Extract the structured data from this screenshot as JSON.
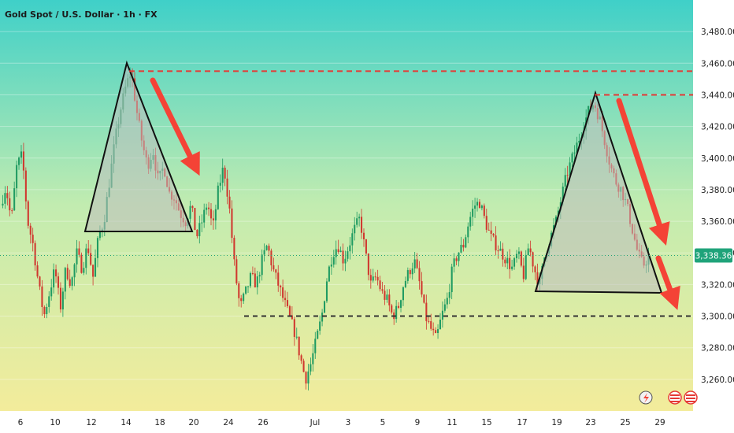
{
  "title": "Gold Spot / U.S. Dollar · 1h · FX",
  "colors": {
    "bg_top": "#3fd0c8",
    "bg_mid": "#c2ecb0",
    "bg_bottom": "#f3ec9b",
    "candle_up": "#1f9b62",
    "candle_down": "#d0382f",
    "resistance": "#e53935",
    "support": "#333333",
    "arrow": "#f44336",
    "price_tag": "#1fa37a"
  },
  "price_tag": "3,338.36",
  "chart_data": {
    "type": "candlestick",
    "y_ticks": [
      3260,
      3280,
      3300,
      3320,
      3340,
      3360,
      3380,
      3400,
      3420,
      3440,
      3460,
      3480
    ],
    "y_tick_labels": [
      "3,260.00",
      "3,280.00",
      "3,300.00",
      "3,320.00",
      "3,340.00",
      "3,360.00",
      "3,380.00",
      "3,400.00",
      "3,420.00",
      "3,440.00",
      "3,460.00",
      "3,480.00"
    ],
    "x_tick_labels": [
      "6",
      "10",
      "12",
      "14",
      "18",
      "20",
      "24",
      "26",
      "Jul",
      "3",
      "5",
      "9",
      "11",
      "15",
      "17",
      "19",
      "23",
      "25",
      "29"
    ],
    "ylim": [
      3240,
      3500
    ],
    "current_price": 3338.36,
    "resistance_level": 3455,
    "resistance_level_2": 3440,
    "support_level": 3300,
    "path": [
      3370,
      3382,
      3360,
      3395,
      3402,
      3360,
      3345,
      3320,
      3300,
      3315,
      3330,
      3305,
      3330,
      3320,
      3340,
      3330,
      3345,
      3325,
      3350,
      3360,
      3385,
      3410,
      3430,
      3445,
      3455,
      3430,
      3410,
      3395,
      3405,
      3385,
      3395,
      3378,
      3375,
      3365,
      3360,
      3370,
      3350,
      3360,
      3372,
      3355,
      3380,
      3395,
      3370,
      3330,
      3305,
      3315,
      3325,
      3320,
      3335,
      3345,
      3330,
      3320,
      3310,
      3300,
      3290,
      3275,
      3260,
      3270,
      3285,
      3300,
      3325,
      3340,
      3345,
      3335,
      3345,
      3355,
      3362,
      3340,
      3320,
      3325,
      3315,
      3310,
      3300,
      3305,
      3320,
      3328,
      3335,
      3320,
      3300,
      3292,
      3285,
      3300,
      3310,
      3330,
      3340,
      3345,
      3360,
      3370,
      3372,
      3360,
      3350,
      3345,
      3340,
      3335,
      3330,
      3340,
      3325,
      3345,
      3330,
      3320,
      3340,
      3350,
      3360,
      3375,
      3390,
      3400,
      3410,
      3420,
      3430,
      3435,
      3425,
      3410,
      3395,
      3385,
      3380,
      3370,
      3355,
      3340,
      3332,
      3338
    ]
  },
  "events": {
    "flash": "flash-icon",
    "flags": [
      "us-flag-icon",
      "us-flag-icon"
    ]
  }
}
